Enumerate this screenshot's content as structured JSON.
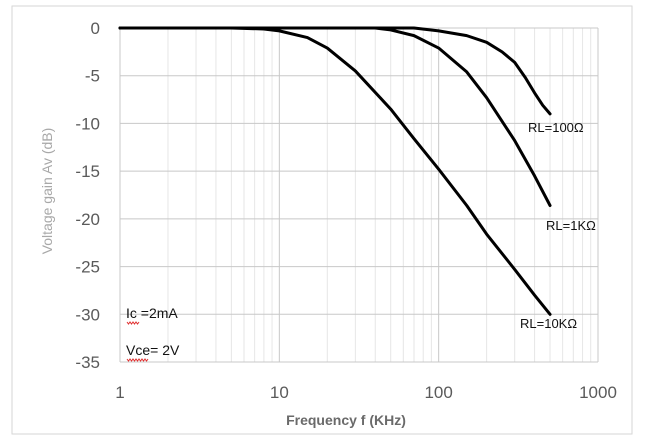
{
  "chart_data": {
    "type": "line",
    "xlabel": "Frequency f (KHz)",
    "ylabel": "Voltage gain Av (dB)",
    "x_scale": "log",
    "xlim": [
      1,
      1000
    ],
    "ylim": [
      -35,
      0
    ],
    "x_ticks": [
      "1",
      "10",
      "100",
      "1000"
    ],
    "y_ticks": [
      "0",
      "-5",
      "-10",
      "-15",
      "-20",
      "-25",
      "-30",
      "-35"
    ],
    "grid": true,
    "series": [
      {
        "name": "RL=100Ω",
        "color": "#000000",
        "points": [
          [
            1,
            0
          ],
          [
            10,
            0
          ],
          [
            50,
            0
          ],
          [
            70,
            0
          ],
          [
            100,
            -0.3
          ],
          [
            150,
            -0.8
          ],
          [
            200,
            -1.5
          ],
          [
            250,
            -2.5
          ],
          [
            300,
            -3.6
          ],
          [
            350,
            -5.2
          ],
          [
            400,
            -6.8
          ],
          [
            450,
            -8.1
          ],
          [
            500,
            -9.0
          ]
        ]
      },
      {
        "name": "RL=1KΩ",
        "color": "#000000",
        "points": [
          [
            1,
            0
          ],
          [
            10,
            0
          ],
          [
            30,
            0
          ],
          [
            40,
            0
          ],
          [
            50,
            -0.2
          ],
          [
            70,
            -0.8
          ],
          [
            100,
            -2.1
          ],
          [
            150,
            -4.6
          ],
          [
            200,
            -7.3
          ],
          [
            300,
            -11.8
          ],
          [
            400,
            -15.5
          ],
          [
            500,
            -18.6
          ]
        ]
      },
      {
        "name": "RL=10KΩ",
        "color": "#000000",
        "points": [
          [
            1,
            0
          ],
          [
            5,
            0
          ],
          [
            8,
            -0.1
          ],
          [
            10,
            -0.3
          ],
          [
            15,
            -1.0
          ],
          [
            20,
            -2.1
          ],
          [
            30,
            -4.5
          ],
          [
            50,
            -8.5
          ],
          [
            70,
            -11.6
          ],
          [
            100,
            -14.8
          ],
          [
            150,
            -18.6
          ],
          [
            200,
            -21.6
          ],
          [
            300,
            -25.3
          ],
          [
            400,
            -28.0
          ],
          [
            500,
            -30.0
          ]
        ]
      }
    ],
    "annotations": [
      {
        "text": "RL=100Ω",
        "series": 0
      },
      {
        "text": "RL=1KΩ",
        "series": 1
      },
      {
        "text": "RL=10KΩ",
        "series": 2
      },
      {
        "text": "Ic =2mA"
      },
      {
        "text": "Vce= 2V"
      }
    ]
  }
}
